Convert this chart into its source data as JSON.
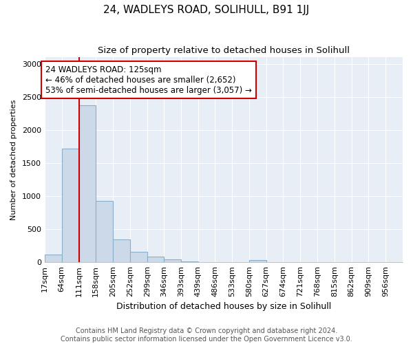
{
  "title": "24, WADLEYS ROAD, SOLIHULL, B91 1JJ",
  "subtitle": "Size of property relative to detached houses in Solihull",
  "xlabel": "Distribution of detached houses by size in Solihull",
  "ylabel": "Number of detached properties",
  "bar_color": "#ccd9e8",
  "bar_edge_color": "#8aaec8",
  "plot_bg_color": "#e8eef5",
  "fig_bg_color": "#ffffff",
  "grid_color": "#ffffff",
  "annotation_box_color": "#cc0000",
  "vline_color": "#cc0000",
  "vline_x": 111,
  "annotation_text": "24 WADLEYS ROAD: 125sqm\n← 46% of detached houses are smaller (2,652)\n53% of semi-detached houses are larger (3,057) →",
  "bins_left": [
    17,
    64,
    111,
    158,
    205,
    252,
    299,
    346,
    393,
    439,
    486,
    533,
    580,
    627,
    674,
    721,
    768,
    815,
    862,
    909
  ],
  "bin_width": 47,
  "counts": [
    120,
    1720,
    2370,
    930,
    340,
    155,
    80,
    45,
    10,
    0,
    0,
    0,
    30,
    0,
    0,
    0,
    0,
    0,
    0,
    0
  ],
  "ylim": [
    0,
    3100
  ],
  "yticks": [
    0,
    500,
    1000,
    1500,
    2000,
    2500,
    3000
  ],
  "tick_labels": [
    "17sqm",
    "64sqm",
    "111sqm",
    "158sqm",
    "205sqm",
    "252sqm",
    "299sqm",
    "346sqm",
    "393sqm",
    "439sqm",
    "486sqm",
    "533sqm",
    "580sqm",
    "627sqm",
    "674sqm",
    "721sqm",
    "768sqm",
    "815sqm",
    "862sqm",
    "909sqm",
    "956sqm"
  ],
  "footer_text": "Contains HM Land Registry data © Crown copyright and database right 2024.\nContains public sector information licensed under the Open Government Licence v3.0.",
  "title_fontsize": 11,
  "subtitle_fontsize": 9.5,
  "annotation_fontsize": 8.5,
  "axis_fontsize": 8,
  "footer_fontsize": 7,
  "xlabel_fontsize": 9,
  "ylabel_fontsize": 8
}
